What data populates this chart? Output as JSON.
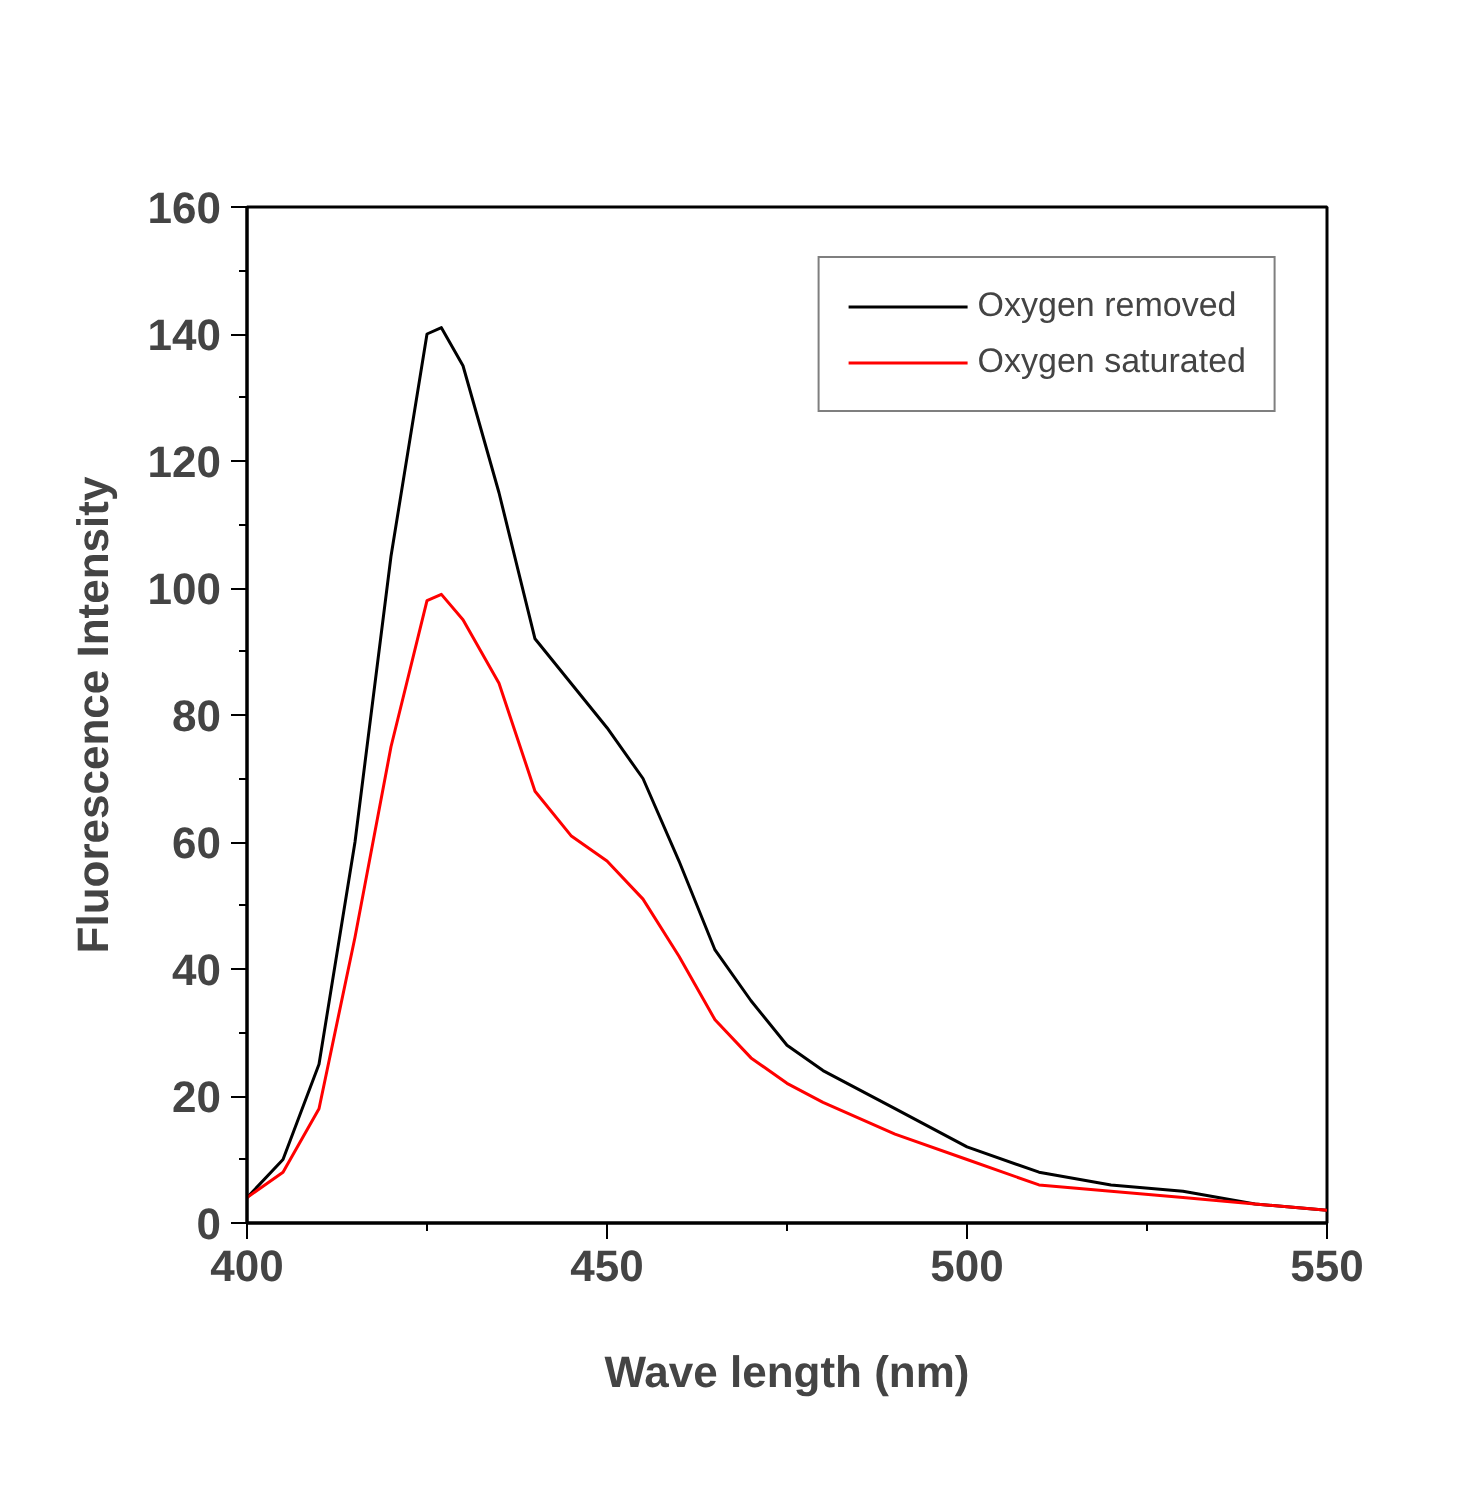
{
  "chart_data": {
    "type": "line",
    "xlabel": "Wave length (nm)",
    "ylabel": "Fluorescence Intensity",
    "x": [
      400,
      405,
      410,
      415,
      420,
      425,
      427,
      430,
      435,
      440,
      445,
      450,
      455,
      460,
      465,
      470,
      475,
      480,
      490,
      500,
      510,
      520,
      530,
      540,
      550
    ],
    "series": [
      {
        "name": "Oxygen removed",
        "color": "#000000",
        "values": [
          4,
          10,
          25,
          60,
          105,
          140,
          141,
          135,
          115,
          92,
          85,
          78,
          70,
          57,
          43,
          35,
          28,
          24,
          18,
          12,
          8,
          6,
          5,
          3,
          2
        ]
      },
      {
        "name": "Oxygen saturated",
        "color": "#ff0000",
        "values": [
          4,
          8,
          18,
          45,
          75,
          98,
          99,
          95,
          85,
          68,
          61,
          57,
          51,
          42,
          32,
          26,
          22,
          19,
          14,
          10,
          6,
          5,
          4,
          3,
          2
        ]
      }
    ],
    "xlim": [
      400,
      550
    ],
    "ylim": [
      0,
      160
    ],
    "xticks": [
      400,
      450,
      500,
      550
    ],
    "yticks": [
      0,
      20,
      40,
      60,
      80,
      100,
      120,
      140,
      160
    ],
    "grid": false,
    "legend": "top right",
    "line_style": "solid",
    "marker": "none"
  }
}
